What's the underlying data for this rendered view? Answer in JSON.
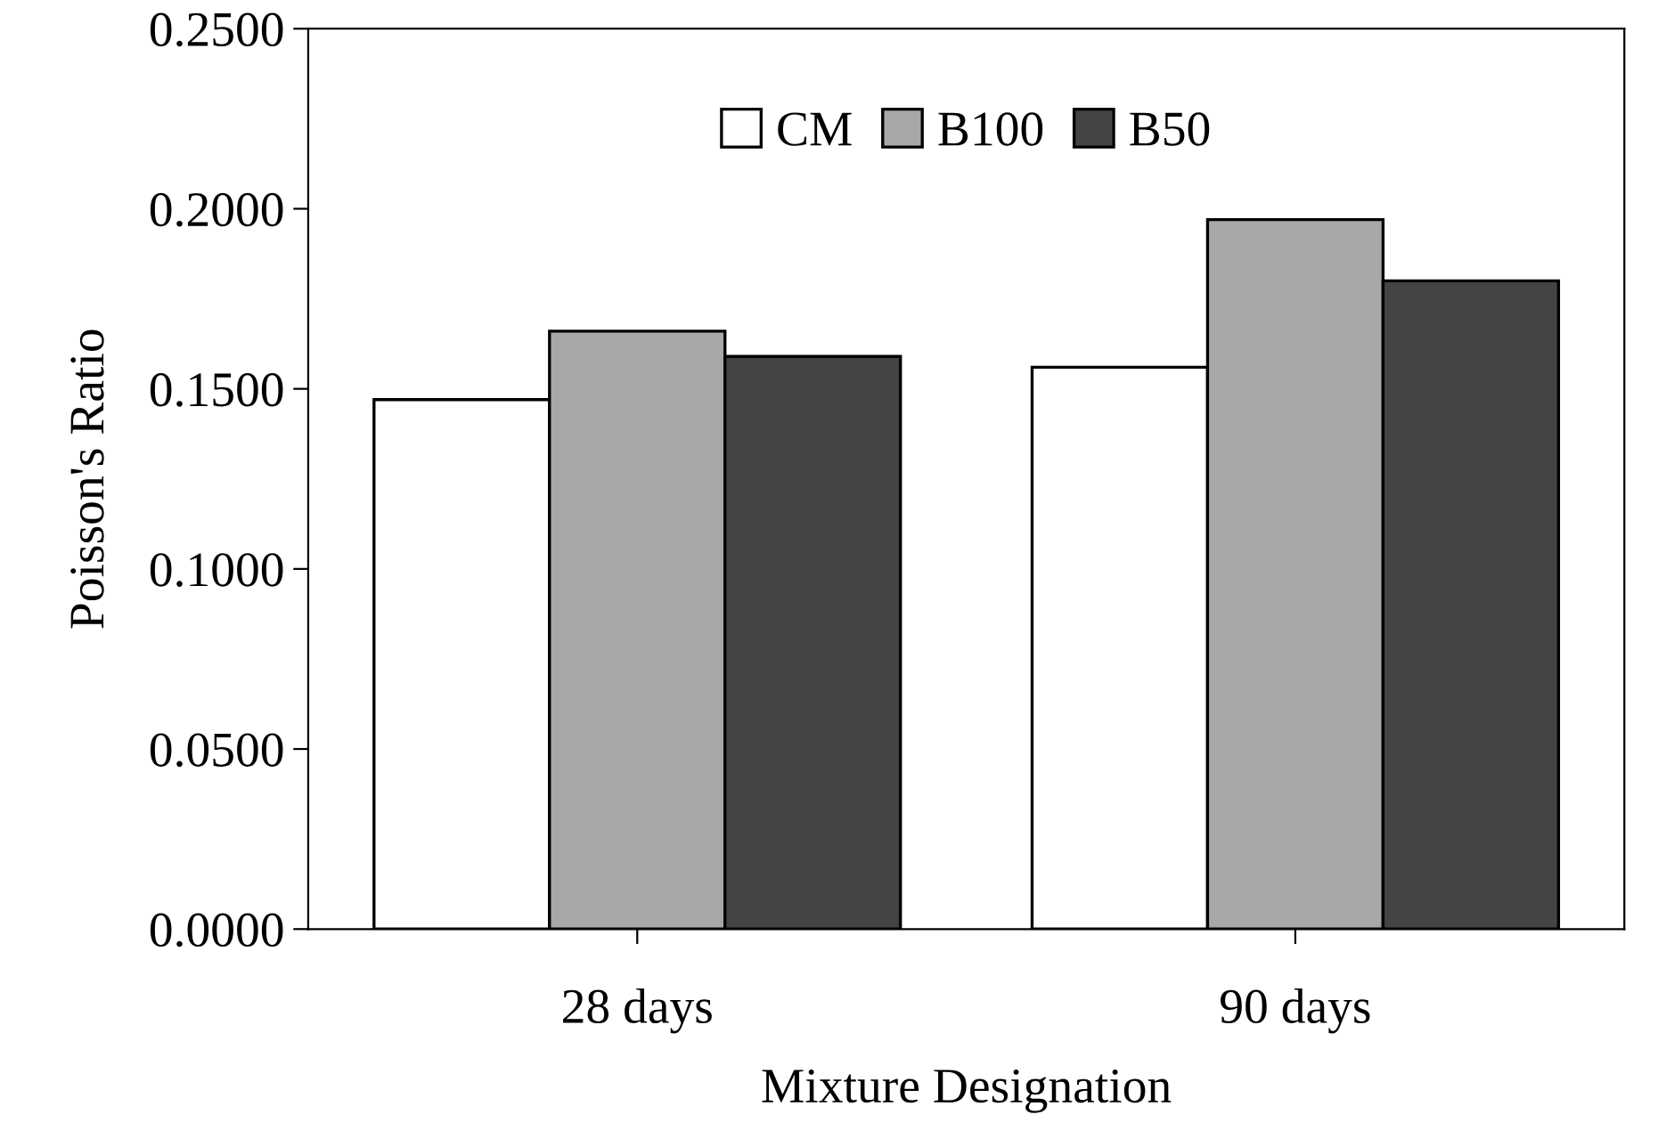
{
  "chart_data": {
    "type": "bar",
    "xlabel": "Mixture Designation",
    "ylabel": "Poisson's Ratio",
    "categories": [
      "28 days",
      "90 days"
    ],
    "series": [
      {
        "name": "CM",
        "color": "#ffffff",
        "values": [
          0.147,
          0.156
        ]
      },
      {
        "name": "B100",
        "color": "#a8a8a8",
        "values": [
          0.166,
          0.197
        ]
      },
      {
        "name": "B50",
        "color": "#444444",
        "values": [
          0.159,
          0.18
        ]
      }
    ],
    "ylim": [
      0,
      0.25
    ],
    "yticks": [
      {
        "value": 0,
        "label": "0.0000"
      },
      {
        "value": 0.05,
        "label": "0.0500"
      },
      {
        "value": 0.1,
        "label": "0.1000"
      },
      {
        "value": 0.15,
        "label": "0.1500"
      },
      {
        "value": 0.2,
        "label": "0.2000"
      },
      {
        "value": 0.25,
        "label": "0.2500"
      }
    ],
    "grid": false,
    "legend": "top"
  }
}
